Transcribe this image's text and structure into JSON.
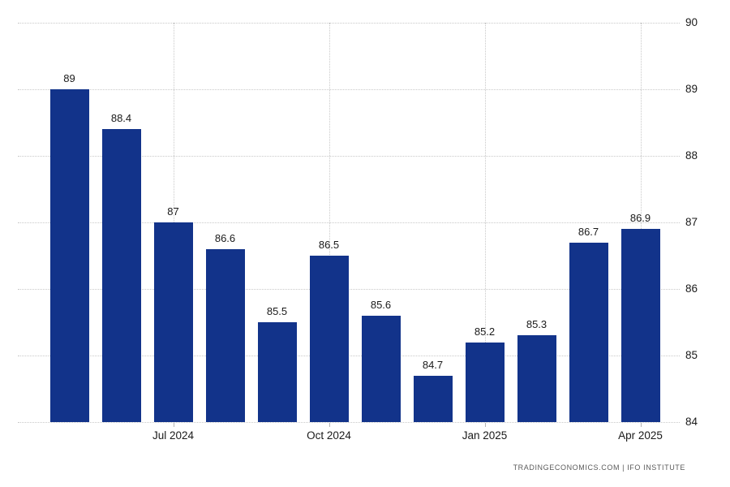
{
  "chart_data": {
    "type": "bar",
    "title": "",
    "values": [
      89,
      88.4,
      87,
      86.6,
      85.5,
      86.5,
      85.6,
      84.7,
      85.2,
      85.3,
      86.7,
      86.9
    ],
    "bar_labels": [
      "89",
      "88.4",
      "87",
      "86.6",
      "85.5",
      "86.5",
      "85.6",
      "84.7",
      "85.2",
      "85.3",
      "86.7",
      "86.9"
    ],
    "x_tick_labels": [
      "Jul 2024",
      "Oct 2024",
      "Jan 2025",
      "Apr 2025"
    ],
    "x_tick_bar_indices": [
      2,
      5,
      8,
      11
    ],
    "y_ticks": [
      84,
      85,
      86,
      87,
      88,
      89,
      90
    ],
    "ylim": [
      84,
      90.3
    ],
    "grid": "dotted",
    "legend": "none",
    "colors": {
      "bar": "#12338a",
      "grid": "#c9c9c9",
      "tick_mark": "#b5b5b5",
      "axis_text": "#1a1a1a",
      "value_label_text": "#1a1a1a",
      "attribution_text": "#5b5b5b",
      "background": "#ffffff"
    },
    "attribution": "TRADINGECONOMICS.COM | IFO INSTITUTE"
  }
}
